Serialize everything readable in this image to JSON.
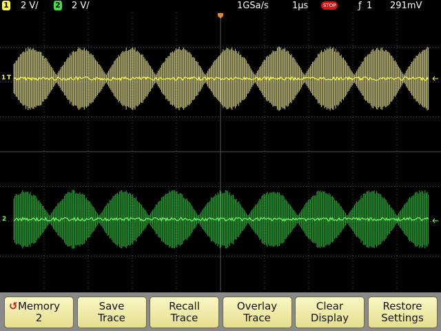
{
  "status_bar": {
    "channel1": {
      "number": "1",
      "scale": "2 V/"
    },
    "channel2": {
      "number": "2",
      "scale": "2 V/"
    },
    "sample_rate": "1GSa/s",
    "time_scale": "1µs",
    "run_state": "STOP",
    "trigger": {
      "symbol": "ƒ",
      "source": "1"
    },
    "trigger_level": "291mV"
  },
  "channel_markers": [
    "1",
    "2"
  ],
  "trigger_marker": "T",
  "softkeys": [
    {
      "icon": "↺",
      "lines": [
        "Memory",
        "2"
      ]
    },
    {
      "lines": [
        "Save",
        "Trace"
      ]
    },
    {
      "lines": [
        "Recall",
        "Trace"
      ]
    },
    {
      "lines": [
        "Overlay",
        "Trace"
      ]
    },
    {
      "lines": [
        "Clear",
        "Display"
      ]
    },
    {
      "lines": [
        "Restore",
        "Settings"
      ]
    }
  ]
}
